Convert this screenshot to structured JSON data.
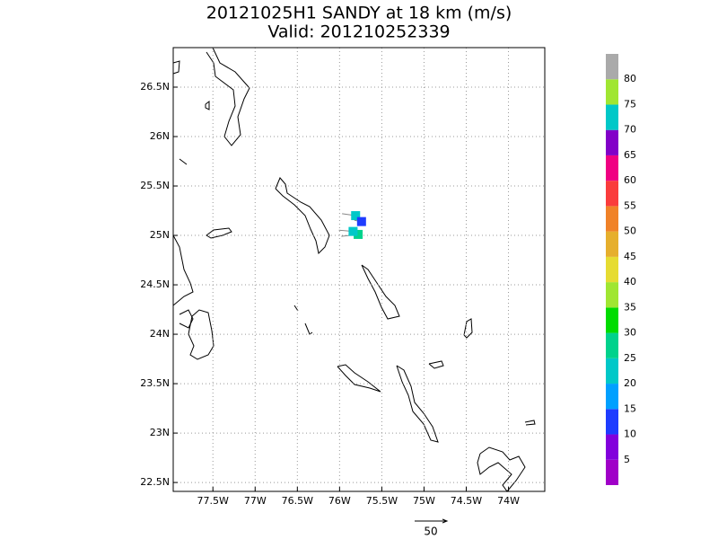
{
  "chart_data": {
    "type": "vector_map",
    "title": "20121025H1 SANDY at 18 km (m/s)",
    "subtitle": "Valid: 201210252339",
    "xlim": [
      -77.97,
      -73.57
    ],
    "ylim": [
      22.41,
      26.9
    ],
    "xticks": [
      {
        "value": -77.5,
        "label": "77.5W"
      },
      {
        "value": -77,
        "label": "77W"
      },
      {
        "value": -76.5,
        "label": "76.5W"
      },
      {
        "value": -76,
        "label": "76W"
      },
      {
        "value": -75.5,
        "label": "75.5W"
      },
      {
        "value": -75,
        "label": "75W"
      },
      {
        "value": -74.5,
        "label": "74.5W"
      },
      {
        "value": -74,
        "label": "74W"
      }
    ],
    "yticks": [
      {
        "value": 22.5,
        "label": "22.5N"
      },
      {
        "value": 23,
        "label": "23N"
      },
      {
        "value": 23.5,
        "label": "23.5N"
      },
      {
        "value": 24,
        "label": "24N"
      },
      {
        "value": 24.5,
        "label": "24.5N"
      },
      {
        "value": 25,
        "label": "25N"
      },
      {
        "value": 25.5,
        "label": "25.5N"
      },
      {
        "value": 26,
        "label": "26N"
      },
      {
        "value": 26.5,
        "label": "26.5N"
      }
    ],
    "grid": true,
    "points": {
      "lon": [
        -75.81,
        -75.74,
        -75.78,
        -75.84
      ],
      "lat": [
        25.2,
        25.14,
        25.01,
        25.04
      ],
      "speed": [
        22,
        12,
        27,
        23
      ],
      "u": [
        -21,
        -11,
        -26,
        -22
      ],
      "v": [
        3,
        2,
        -3,
        2
      ]
    },
    "colorbar": {
      "lim": [
        0,
        85
      ],
      "bands": [
        0,
        5,
        10,
        15,
        20,
        25,
        30,
        35,
        40,
        45,
        50,
        55,
        60,
        65,
        70,
        75,
        80,
        85
      ],
      "colors": [
        "#a000c8",
        "#8200dc",
        "#1e3cff",
        "#00a0ff",
        "#00c8c8",
        "#00d28c",
        "#00dc00",
        "#a0e632",
        "#e6dc32",
        "#e6af2d",
        "#f08228",
        "#fa3c3c",
        "#f00082",
        "#8200c8",
        "#00c8c8",
        "#a0e632",
        "#aaaaaa"
      ],
      "ticks": [
        5,
        10,
        15,
        20,
        25,
        30,
        35,
        40,
        45,
        50,
        55,
        60,
        65,
        70,
        75,
        80
      ]
    },
    "reference_vector": 50
  }
}
